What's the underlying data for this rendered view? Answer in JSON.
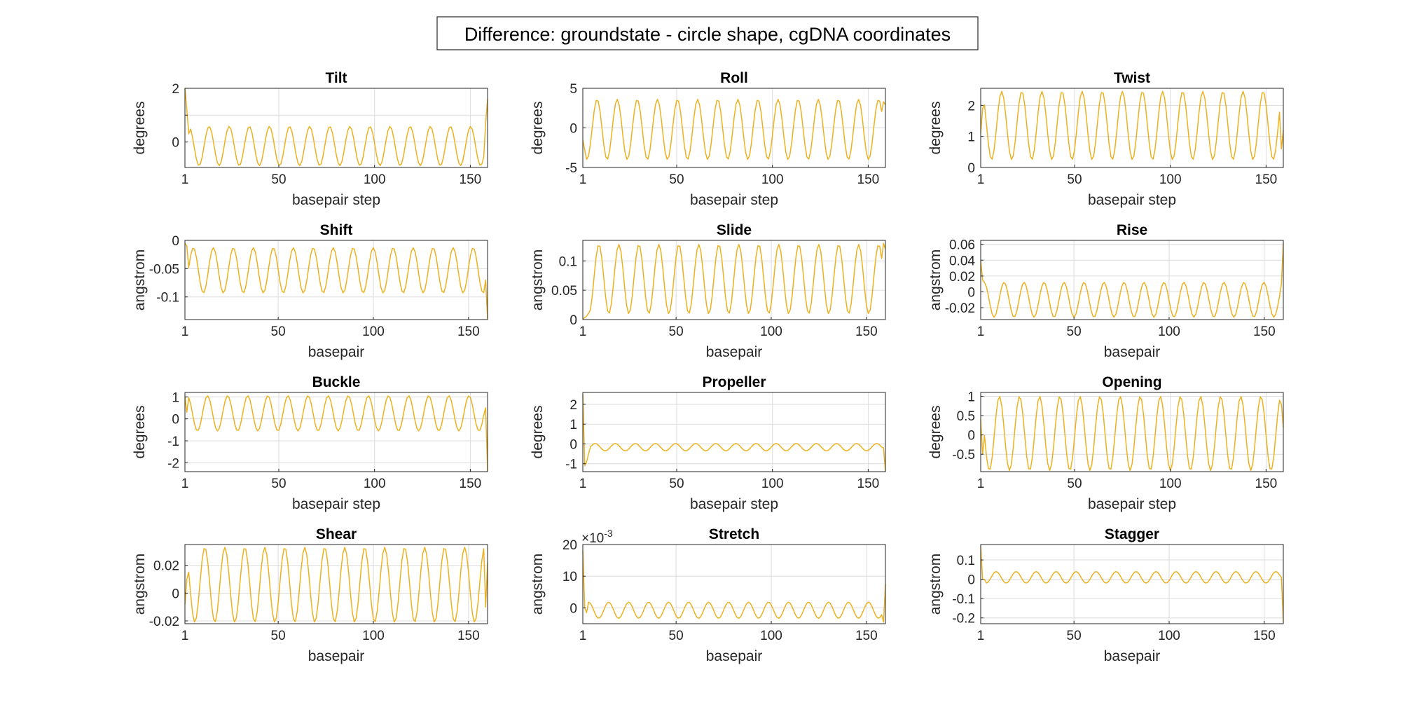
{
  "figure": {
    "title": "Difference: groundstate - circle shape, cgDNA coordinates",
    "line_color": "#EDB120",
    "grid_color": "#DCDCDC",
    "axes_color": "#262626"
  },
  "chart_data": [
    {
      "type": "line",
      "title": "Tilt",
      "xlabel": "basepair step",
      "ylabel": "degrees",
      "xlim": [
        1,
        159
      ],
      "ylim": [
        -0.95,
        2
      ],
      "xticks": [
        1,
        50,
        100,
        150
      ],
      "xtick_labels": [
        "1",
        "50",
        "100",
        "150"
      ],
      "yticks": [
        2,
        1,
        0
      ],
      "ytick_labels": [
        "2",
        "",
        "0"
      ],
      "series": [
        {
          "shape": {
            "n": 159,
            "period": 10.5,
            "phase": 0.3,
            "min": -0.88,
            "max": 0.58,
            "start": [
              2.0,
              1.2,
              0.3
            ],
            "end": [
              0.7,
              1.6
            ]
          }
        }
      ]
    },
    {
      "type": "line",
      "title": "Roll",
      "xlabel": "basepair step",
      "ylabel": "degrees",
      "xlim": [
        1,
        159
      ],
      "ylim": [
        -5,
        5
      ],
      "xticks": [
        1,
        50,
        100,
        150
      ],
      "xtick_labels": [
        "1",
        "50",
        "100",
        "150"
      ],
      "yticks": [
        5,
        0,
        -5
      ],
      "ytick_labels": [
        "5",
        "0",
        "-5"
      ],
      "series": [
        {
          "shape": {
            "n": 159,
            "period": 10.5,
            "phase": 3.4,
            "min": -4.0,
            "max": 3.6,
            "start": [
              -1.5,
              -2.8
            ],
            "end": [
              3.3,
              2.9
            ]
          }
        }
      ]
    },
    {
      "type": "line",
      "title": "Twist",
      "xlabel": "basepair step",
      "ylabel": "degrees",
      "xlim": [
        1,
        159
      ],
      "ylim": [
        0,
        2.55
      ],
      "xticks": [
        1,
        50,
        100,
        150
      ],
      "xtick_labels": [
        "1",
        "50",
        "100",
        "150"
      ],
      "yticks": [
        2,
        1,
        0
      ],
      "ytick_labels": [
        "2",
        "1",
        "0"
      ],
      "series": [
        {
          "shape": {
            "n": 159,
            "period": 10.5,
            "phase": 1.3,
            "min": 0.25,
            "max": 2.45,
            "start": [
              1.1,
              1.9
            ],
            "end": [
              0.6,
              1.2
            ]
          }
        }
      ]
    },
    {
      "type": "line",
      "title": "Shift",
      "xlabel": "basepair",
      "ylabel": "angstrom",
      "xlim": [
        1,
        160
      ],
      "ylim": [
        -0.14,
        0
      ],
      "xticks": [
        1,
        50,
        100,
        150
      ],
      "xtick_labels": [
        "1",
        "50",
        "100",
        "150"
      ],
      "yticks": [
        0,
        -0.05,
        -0.1
      ],
      "ytick_labels": [
        "0",
        "-0.05",
        "-0.1"
      ],
      "series": [
        {
          "shape": {
            "n": 160,
            "period": 10.5,
            "phase": 5.2,
            "min": -0.093,
            "max": -0.013,
            "start": [
              -0.005,
              -0.01
            ],
            "end": [
              -0.07,
              -0.14
            ]
          }
        }
      ]
    },
    {
      "type": "line",
      "title": "Slide",
      "xlabel": "basepair",
      "ylabel": "angstrom",
      "xlim": [
        1,
        160
      ],
      "ylim": [
        0,
        0.135
      ],
      "xticks": [
        1,
        50,
        100,
        150
      ],
      "xtick_labels": [
        "1",
        "50",
        "100",
        "150"
      ],
      "yticks": [
        0.1,
        0.05,
        0
      ],
      "ytick_labels": [
        "0.1",
        "0.05",
        "0"
      ],
      "series": [
        {
          "shape": {
            "n": 160,
            "period": 10.5,
            "phase": 2.8,
            "min": 0.01,
            "max": 0.128,
            "start": [
              0.001,
              0.003,
              0.006
            ],
            "end": [
              0.13,
              0.12
            ]
          }
        }
      ]
    },
    {
      "type": "line",
      "title": "Rise",
      "xlabel": "basepair",
      "ylabel": "angstrom",
      "xlim": [
        1,
        160
      ],
      "ylim": [
        -0.035,
        0.065
      ],
      "xticks": [
        1,
        50,
        100,
        150
      ],
      "xtick_labels": [
        "1",
        "50",
        "100",
        "150"
      ],
      "yticks": [
        0.06,
        0.04,
        0.02,
        0,
        -0.02
      ],
      "ytick_labels": [
        "0.06",
        "0.04",
        "0.02",
        "0",
        "-0.02"
      ],
      "series": [
        {
          "shape": {
            "n": 160,
            "period": 10.5,
            "phase": 0.5,
            "min": -0.032,
            "max": 0.012,
            "start": [
              0.04,
              0.015
            ],
            "end": [
              0.01,
              0.062
            ]
          }
        }
      ]
    },
    {
      "type": "line",
      "title": "Buckle",
      "xlabel": "basepair step",
      "ylabel": "degrees",
      "xlim": [
        1,
        159
      ],
      "ylim": [
        -2.4,
        1.2
      ],
      "xticks": [
        1,
        50,
        100,
        150
      ],
      "xtick_labels": [
        "1",
        "50",
        "100",
        "150"
      ],
      "yticks": [
        1,
        0,
        -1,
        -2
      ],
      "ytick_labels": [
        "1",
        "0",
        "-1",
        "-2"
      ],
      "series": [
        {
          "shape": {
            "n": 159,
            "period": 10.5,
            "phase": 0.8,
            "min": -0.55,
            "max": 1.05,
            "start": [
              1.0,
              0.3
            ],
            "end": [
              0.5,
              -2.4
            ]
          }
        }
      ]
    },
    {
      "type": "line",
      "title": "Propeller",
      "xlabel": "basepair step",
      "ylabel": "degrees",
      "xlim": [
        1,
        159
      ],
      "ylim": [
        -1.4,
        2.6
      ],
      "xticks": [
        1,
        50,
        100,
        150
      ],
      "xtick_labels": [
        "1",
        "50",
        "100",
        "150"
      ],
      "yticks": [
        2,
        1,
        0,
        -1
      ],
      "ytick_labels": [
        "2",
        "1",
        "0",
        "-1"
      ],
      "series": [
        {
          "shape": {
            "n": 159,
            "period": 10.5,
            "phase": 4.0,
            "min": -0.35,
            "max": 0.02,
            "start": [
              2.5,
              -1.1,
              -0.9,
              -0.5
            ],
            "end": [
              -0.2,
              -1.4
            ]
          }
        }
      ]
    },
    {
      "type": "line",
      "title": "Opening",
      "xlabel": "basepair step",
      "ylabel": "degrees",
      "xlim": [
        1,
        159
      ],
      "ylim": [
        -0.95,
        1.1
      ],
      "xticks": [
        1,
        50,
        100,
        150
      ],
      "xtick_labels": [
        "1",
        "50",
        "100",
        "150"
      ],
      "yticks": [
        1,
        0.5,
        0,
        -0.5
      ],
      "ytick_labels": [
        "1",
        "0.5",
        "0",
        "-0.5"
      ],
      "series": [
        {
          "shape": {
            "n": 159,
            "period": 10.5,
            "phase": 2.0,
            "min": -0.92,
            "max": 1.0,
            "start": [
              0.4,
              -0.5
            ],
            "end": [
              0.8,
              0.2
            ]
          }
        }
      ]
    },
    {
      "type": "line",
      "title": "Shear",
      "xlabel": "basepair",
      "ylabel": "angstrom",
      "xlim": [
        1,
        160
      ],
      "ylim": [
        -0.022,
        0.035
      ],
      "xticks": [
        1,
        50,
        100,
        150
      ],
      "xtick_labels": [
        "1",
        "50",
        "100",
        "150"
      ],
      "yticks": [
        0.02,
        0,
        -0.02
      ],
      "ytick_labels": [
        "0.02",
        "0",
        "-0.02"
      ],
      "series": [
        {
          "shape": {
            "n": 160,
            "period": 10.5,
            "phase": 1.6,
            "min": -0.021,
            "max": 0.033,
            "start": [
              -0.008,
              0.01
            ],
            "end": [
              -0.01,
              0.022
            ]
          }
        }
      ]
    },
    {
      "type": "line",
      "title": "Stretch",
      "xlabel": "basepair",
      "ylabel": "angstrom",
      "exponent_label": "×10",
      "exponent": "-3",
      "xlim": [
        1,
        160
      ],
      "ylim": [
        -5,
        20
      ],
      "xticks": [
        1,
        50,
        100,
        150
      ],
      "xtick_labels": [
        "1",
        "50",
        "100",
        "150"
      ],
      "yticks": [
        20,
        10,
        0
      ],
      "ytick_labels": [
        "20",
        "10",
        "0"
      ],
      "series": [
        {
          "shape": {
            "n": 160,
            "period": 10.5,
            "phase": 6.0,
            "min": -3.3,
            "max": 1.8,
            "start": [
              18,
              0,
              -1.5
            ],
            "end": [
              -4.5,
              7.5
            ]
          }
        }
      ]
    },
    {
      "type": "line",
      "title": "Stagger",
      "xlabel": "basepair",
      "ylabel": "angstrom",
      "xlim": [
        1,
        160
      ],
      "ylim": [
        -0.23,
        0.18
      ],
      "xticks": [
        1,
        50,
        100,
        150
      ],
      "xtick_labels": [
        "1",
        "50",
        "100",
        "150"
      ],
      "yticks": [
        0.1,
        0,
        -0.1,
        -0.2
      ],
      "ytick_labels": [
        "0.1",
        "0",
        "-0.1",
        "-0.2"
      ],
      "series": [
        {
          "shape": {
            "n": 160,
            "period": 10.5,
            "phase": 3.0,
            "min": -0.02,
            "max": 0.04,
            "start": [
              0.17,
              0.0,
              0.0
            ],
            "end": [
              0.01,
              -0.22
            ]
          }
        }
      ]
    }
  ]
}
